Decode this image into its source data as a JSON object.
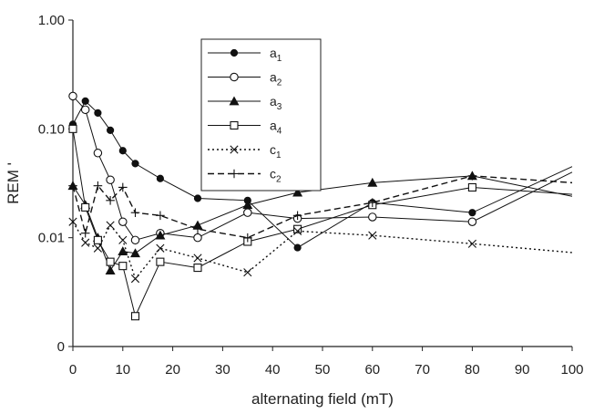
{
  "chart_data": {
    "type": "line",
    "title": "",
    "xlabel": "alternating field (mT)",
    "ylabel": "REM '",
    "x_ticks": [
      "0",
      "10",
      "20",
      "30",
      "40",
      "50",
      "60",
      "70",
      "80",
      "90",
      "100"
    ],
    "y_ticks": [
      "0",
      "0.01",
      "0.10",
      "1.00"
    ],
    "xlim": [
      0,
      100
    ],
    "y_scale": "log-like (0 shown at bottom)",
    "y_tick_values": [
      0.001,
      0.01,
      0.1,
      1.0
    ],
    "grid": false,
    "legend_position": "upper-middle",
    "series": [
      {
        "name": "a1",
        "label_main": "a",
        "label_sub": "1",
        "marker": "filled-circle",
        "line": "solid",
        "x": [
          0,
          2.5,
          5,
          7.5,
          10,
          12.5,
          17.5,
          25,
          35,
          45,
          60,
          80,
          100
        ],
        "y": [
          0.11,
          0.18,
          0.14,
          0.097,
          0.063,
          0.048,
          0.035,
          0.023,
          0.022,
          0.0081,
          0.021,
          0.017,
          0.045
        ]
      },
      {
        "name": "a2",
        "label_main": "a",
        "label_sub": "2",
        "marker": "open-circle",
        "line": "solid",
        "x": [
          0,
          2.5,
          5,
          7.5,
          10,
          12.5,
          17.5,
          25,
          35,
          45,
          60,
          80,
          100
        ],
        "y": [
          0.2,
          0.15,
          0.06,
          0.034,
          0.014,
          0.0095,
          0.011,
          0.01,
          0.017,
          0.015,
          0.0155,
          0.014,
          0.04
        ]
      },
      {
        "name": "a3",
        "label_main": "a",
        "label_sub": "3",
        "marker": "filled-triangle",
        "line": "solid",
        "x": [
          0,
          2.5,
          5,
          7.5,
          10,
          12.5,
          17.5,
          25,
          35,
          45,
          60,
          80,
          100
        ],
        "y": [
          0.03,
          0.02,
          0.01,
          0.005,
          0.0075,
          0.0072,
          0.0105,
          0.013,
          0.02,
          0.026,
          0.032,
          0.037,
          0.024
        ]
      },
      {
        "name": "a4",
        "label_main": "a",
        "label_sub": "4",
        "marker": "open-square",
        "line": "solid",
        "x": [
          0,
          2.5,
          5,
          7.5,
          10,
          12.5,
          17.5,
          25,
          35,
          45,
          60,
          80,
          100
        ],
        "y": [
          0.1,
          0.019,
          0.0095,
          0.006,
          0.0055,
          0.0019,
          0.006,
          0.0053,
          0.0092,
          0.012,
          0.02,
          0.029,
          0.025
        ]
      },
      {
        "name": "c1",
        "label_main": "c",
        "label_sub": "1",
        "marker": "x",
        "line": "dotted",
        "x": [
          0,
          2.5,
          5,
          7.5,
          10,
          12.5,
          17.5,
          25,
          35,
          45,
          60,
          80,
          100
        ],
        "y": [
          0.014,
          0.009,
          0.008,
          0.013,
          0.0095,
          0.0042,
          0.008,
          0.0065,
          0.0048,
          0.0115,
          0.0105,
          0.0088,
          0.0073
        ]
      },
      {
        "name": "c2",
        "label_main": "c",
        "label_sub": "2",
        "marker": "plus",
        "line": "dashed",
        "x": [
          0,
          2.5,
          5,
          7.5,
          10,
          12.5,
          17.5,
          25,
          35,
          45,
          60,
          80,
          100
        ],
        "y": [
          0.03,
          0.011,
          0.03,
          0.022,
          0.029,
          0.017,
          0.016,
          0.012,
          0.01,
          0.016,
          0.021,
          0.037,
          0.032
        ]
      }
    ]
  }
}
